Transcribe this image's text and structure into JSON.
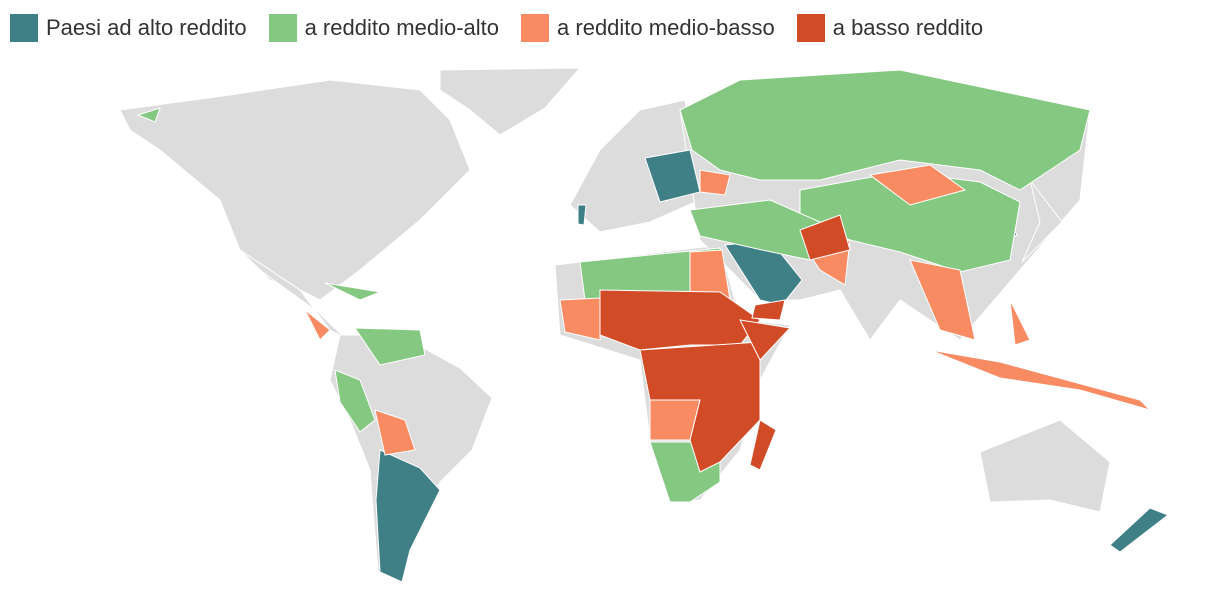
{
  "legend": {
    "items": [
      {
        "label": "Paesi ad alto reddito",
        "color": "#3f7f86"
      },
      {
        "label": "a reddito medio-alto",
        "color": "#85c882"
      },
      {
        "label": "a reddito medio-basso",
        "color": "#f98b63"
      },
      {
        "label": "a basso reddito",
        "color": "#d24b27"
      }
    ]
  }
}
